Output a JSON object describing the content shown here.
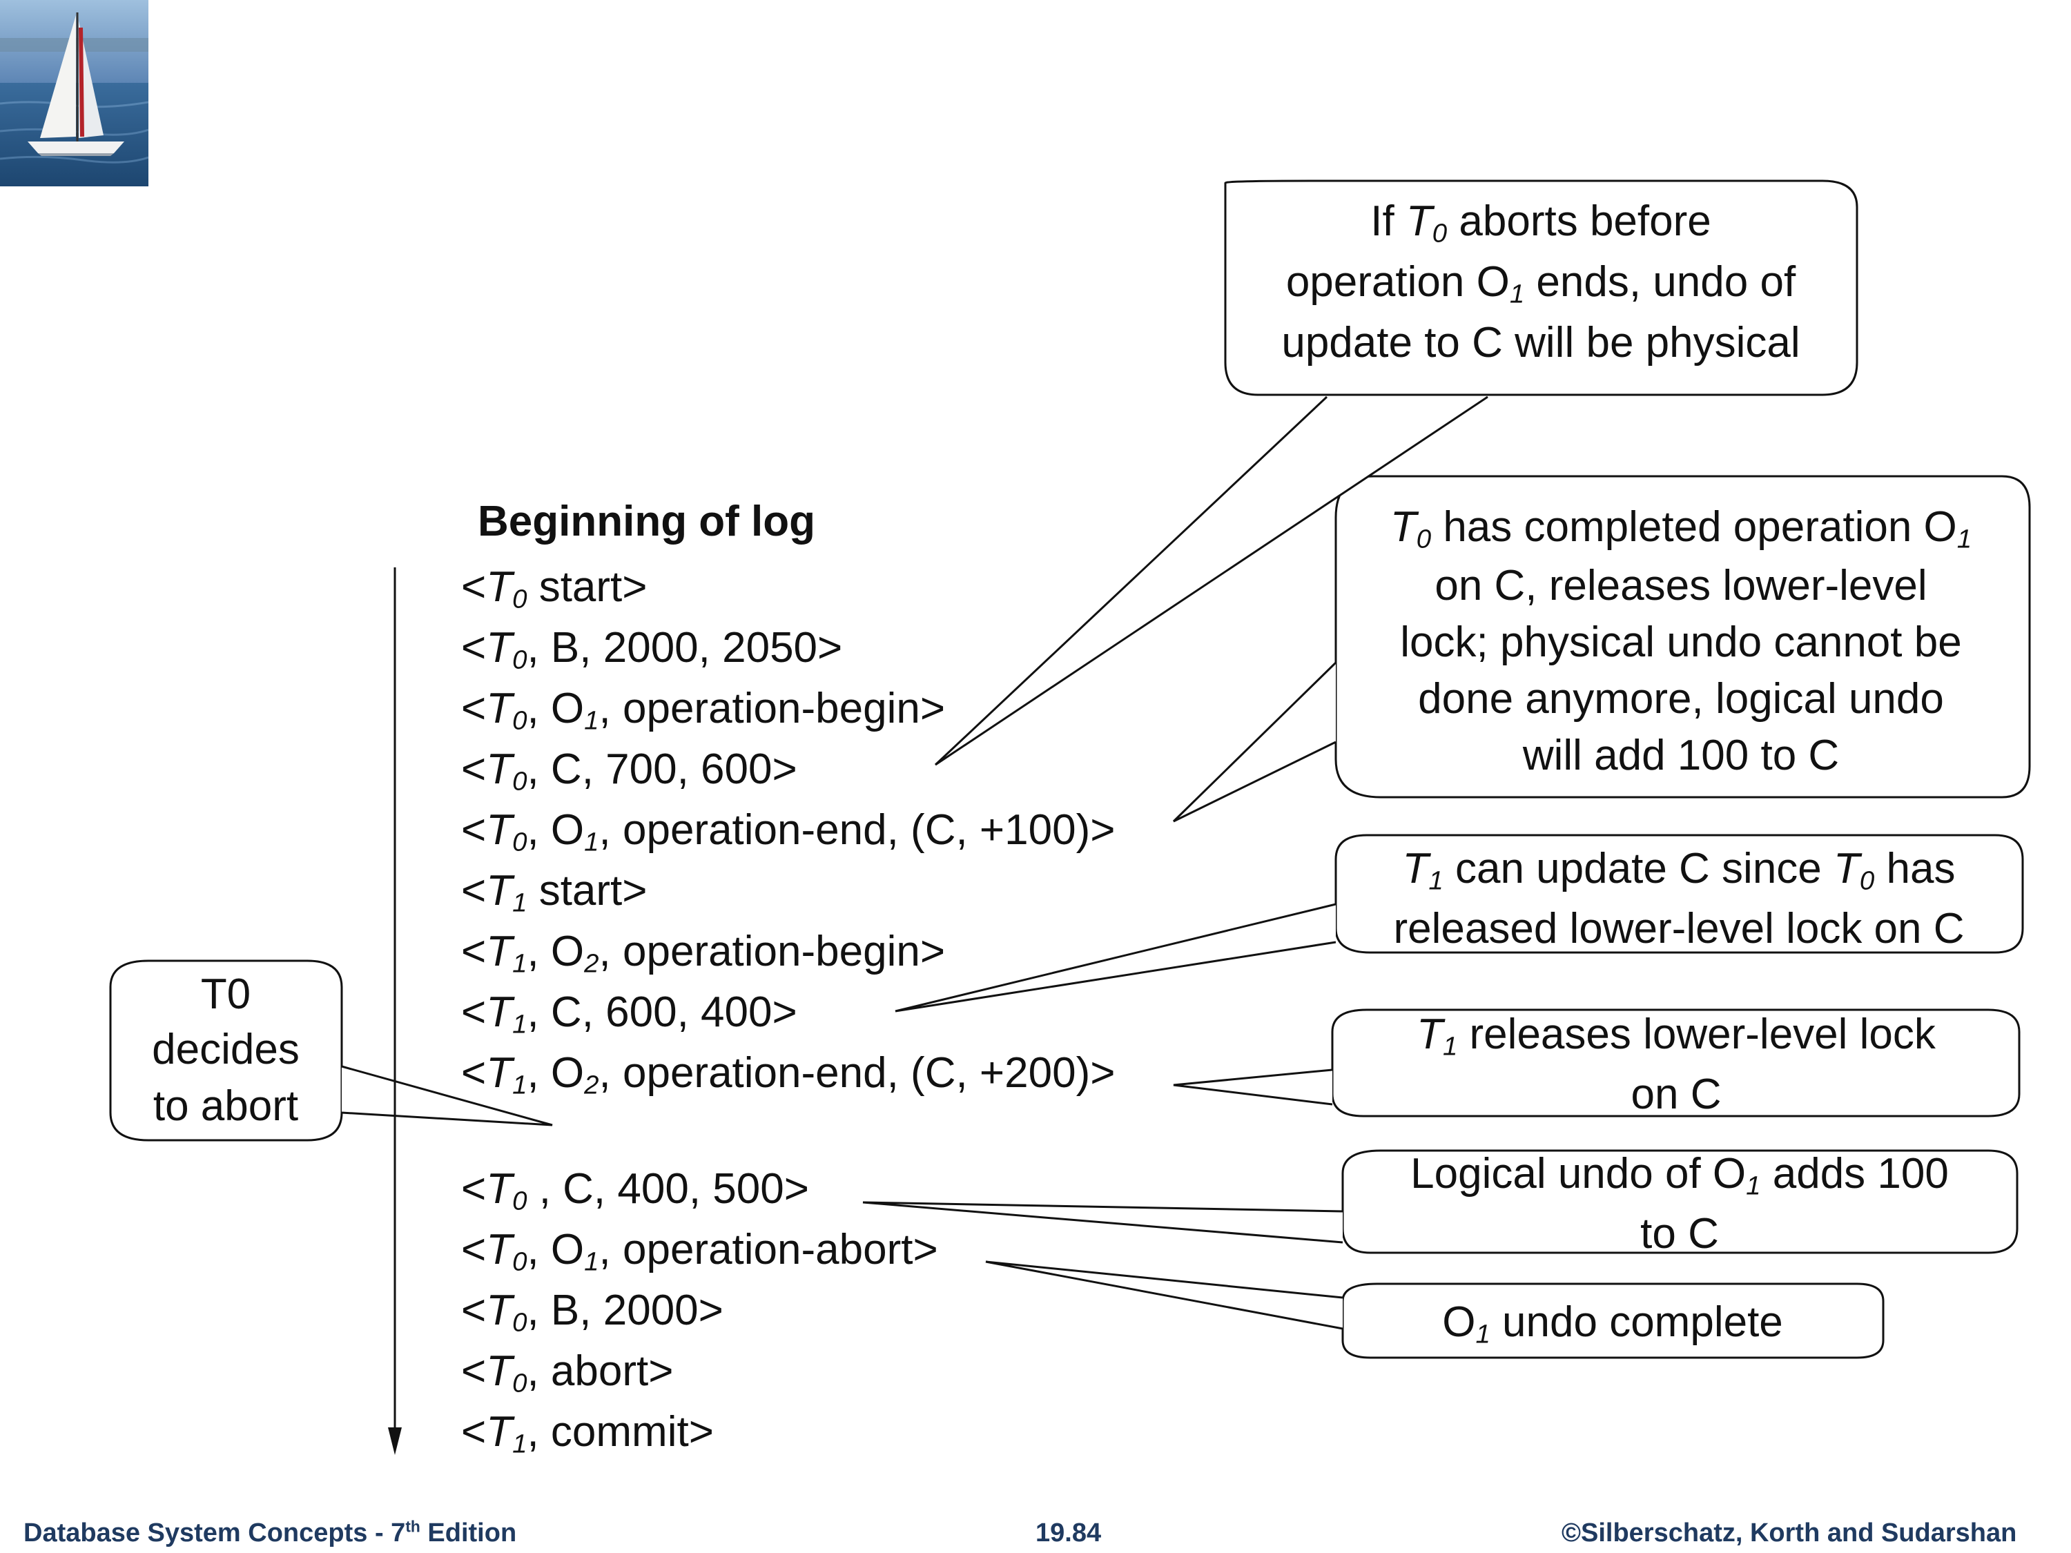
{
  "slide": {
    "heading": "Beginning of log",
    "log_records": [
      {
        "parts": [
          {
            "t": "<"
          },
          {
            "t": "T",
            "i": 1
          },
          {
            "t": "0",
            "s": 1,
            "i": 1
          },
          {
            "t": " start>"
          }
        ]
      },
      {
        "parts": [
          {
            "t": "<"
          },
          {
            "t": "T",
            "i": 1
          },
          {
            "t": "0",
            "s": 1,
            "i": 1
          },
          {
            "t": ", B, 2000, 2050>"
          }
        ]
      },
      {
        "parts": [
          {
            "t": "<"
          },
          {
            "t": "T",
            "i": 1
          },
          {
            "t": "0",
            "s": 1,
            "i": 1
          },
          {
            "t": ", O"
          },
          {
            "t": "1",
            "s": 1,
            "i": 1
          },
          {
            "t": ", operation-begin>"
          }
        ]
      },
      {
        "parts": [
          {
            "t": "<"
          },
          {
            "t": "T",
            "i": 1
          },
          {
            "t": "0",
            "s": 1,
            "i": 1
          },
          {
            "t": ", C, 700, 600>"
          }
        ]
      },
      {
        "parts": [
          {
            "t": "<"
          },
          {
            "t": "T",
            "i": 1
          },
          {
            "t": "0",
            "s": 1,
            "i": 1
          },
          {
            "t": ", O"
          },
          {
            "t": "1",
            "s": 1,
            "i": 1
          },
          {
            "t": ", operation-end, (C, +100)>"
          }
        ]
      },
      {
        "parts": [
          {
            "t": "<"
          },
          {
            "t": "T",
            "i": 1
          },
          {
            "t": "1",
            "s": 1,
            "i": 1
          },
          {
            "t": " start>"
          }
        ]
      },
      {
        "parts": [
          {
            "t": "<"
          },
          {
            "t": "T",
            "i": 1
          },
          {
            "t": "1",
            "s": 1,
            "i": 1
          },
          {
            "t": ", O"
          },
          {
            "t": "2",
            "s": 1,
            "i": 1
          },
          {
            "t": ", operation-begin>"
          }
        ]
      },
      {
        "parts": [
          {
            "t": "<"
          },
          {
            "t": "T",
            "i": 1
          },
          {
            "t": "1",
            "s": 1,
            "i": 1
          },
          {
            "t": ", C, 600, 400>"
          }
        ]
      },
      {
        "parts": [
          {
            "t": "<"
          },
          {
            "t": "T",
            "i": 1
          },
          {
            "t": "1",
            "s": 1,
            "i": 1
          },
          {
            "t": ", O"
          },
          {
            "t": "2",
            "s": 1,
            "i": 1
          },
          {
            "t": ", operation-end, (C, +200)>"
          }
        ]
      },
      {
        "parts": [
          {
            "t": "<"
          },
          {
            "t": "T",
            "i": 1
          },
          {
            "t": "0",
            "s": 1,
            "i": 1
          },
          {
            "t": " , C, 400, 500>"
          }
        ]
      },
      {
        "parts": [
          {
            "t": "<"
          },
          {
            "t": "T",
            "i": 1
          },
          {
            "t": "0",
            "s": 1,
            "i": 1
          },
          {
            "t": ", O"
          },
          {
            "t": "1",
            "s": 1,
            "i": 1
          },
          {
            "t": ", operation-abort>"
          }
        ]
      },
      {
        "parts": [
          {
            "t": "<"
          },
          {
            "t": "T",
            "i": 1
          },
          {
            "t": "0",
            "s": 1,
            "i": 1
          },
          {
            "t": ", B, 2000>"
          }
        ]
      },
      {
        "parts": [
          {
            "t": "<"
          },
          {
            "t": "T",
            "i": 1
          },
          {
            "t": "0",
            "s": 1,
            "i": 1
          },
          {
            "t": ", abort>"
          }
        ]
      },
      {
        "parts": [
          {
            "t": "<"
          },
          {
            "t": "T",
            "i": 1
          },
          {
            "t": "1",
            "s": 1,
            "i": 1
          },
          {
            "t": ", commit>"
          }
        ]
      }
    ],
    "callouts": [
      {
        "lines": [
          [
            {
              "t": "If "
            },
            {
              "t": "T",
              "i": 1
            },
            {
              "t": "0",
              "s": 1,
              "i": 1
            },
            {
              "t": " aborts before"
            }
          ],
          [
            {
              "t": "operation O"
            },
            {
              "t": "1",
              "s": 1,
              "i": 1
            },
            {
              "t": " ends, undo of"
            }
          ],
          [
            {
              "t": "update to C will be physical"
            }
          ]
        ]
      },
      {
        "lines": [
          [
            {
              "t": "T",
              "i": 1
            },
            {
              "t": "0",
              "s": 1,
              "i": 1
            },
            {
              "t": " has completed operation O"
            },
            {
              "t": "1",
              "s": 1,
              "i": 1
            }
          ],
          [
            {
              "t": "on C, releases lower-level"
            }
          ],
          [
            {
              "t": "lock; physical undo cannot be"
            }
          ],
          [
            {
              "t": "done anymore, logical undo"
            }
          ],
          [
            {
              "t": "will add 100 to C"
            }
          ]
        ]
      },
      {
        "lines": [
          [
            {
              "t": "T",
              "i": 1
            },
            {
              "t": "1",
              "s": 1,
              "i": 1
            },
            {
              "t": " can update C since "
            },
            {
              "t": "T",
              "i": 1
            },
            {
              "t": "0",
              "s": 1,
              "i": 1
            },
            {
              "t": " has"
            }
          ],
          [
            {
              "t": "released lower-level lock on C"
            }
          ]
        ]
      },
      {
        "lines": [
          [
            {
              "t": "T",
              "i": 1
            },
            {
              "t": "1",
              "s": 1,
              "i": 1
            },
            {
              "t": " releases lower-level lock"
            }
          ],
          [
            {
              "t": "on C"
            }
          ]
        ]
      },
      {
        "lines": [
          [
            {
              "t": "Logical undo of O"
            },
            {
              "t": "1",
              "s": 1,
              "i": 1
            },
            {
              "t": " adds 100"
            }
          ],
          [
            {
              "t": "to C"
            }
          ]
        ]
      },
      {
        "lines": [
          [
            {
              "t": "O"
            },
            {
              "t": "1",
              "s": 1,
              "i": 1
            },
            {
              "t": " undo complete"
            }
          ]
        ]
      },
      {
        "lines": [
          [
            {
              "t": "T0"
            }
          ],
          [
            {
              "t": "decides"
            }
          ],
          [
            {
              "t": "to abort"
            }
          ]
        ]
      }
    ]
  },
  "footer": {
    "left": "Database System Concepts - 7",
    "left_sup": "th",
    "left_end": " Edition",
    "center": "19.84",
    "right": "©Silberschatz, Korth and Sudarshan"
  },
  "colors": {
    "footer": "#1f3a60",
    "ink": "#111111",
    "logo_sky": "#5e86b5",
    "logo_water": "#25547f",
    "sail_stripe": "#b3232a"
  },
  "icons": {
    "logo": "sailboat-logo-icon"
  }
}
